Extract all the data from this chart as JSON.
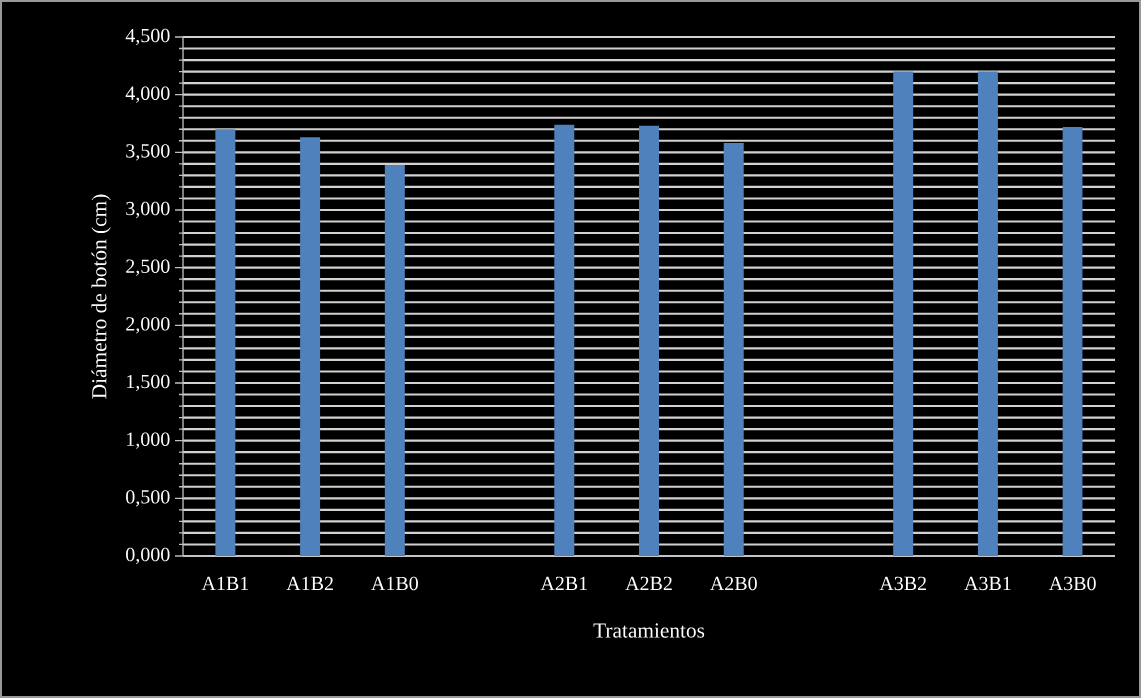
{
  "chart_data": {
    "type": "bar",
    "xlabel": "Tratamientos",
    "ylabel": "Diámetro de botón (cm)",
    "categories": [
      "A1B1",
      "A1B2",
      "A1B0",
      null,
      "A2B1",
      "A2B2",
      "A2B0",
      null,
      "A3B2",
      "A3B1",
      "A3B0"
    ],
    "values": [
      3.7,
      3.63,
      3.39,
      null,
      3.74,
      3.73,
      3.58,
      null,
      4.2,
      4.2,
      3.72
    ],
    "color": "#4f81bd",
    "ylim": [
      0,
      4.5
    ],
    "yticks": [
      {
        "value": 0,
        "label": "0,000"
      },
      {
        "value": 0.5,
        "label": "0,500"
      },
      {
        "value": 1,
        "label": "1,000"
      },
      {
        "value": 1.5,
        "label": "1,500"
      },
      {
        "value": 2,
        "label": "2,000"
      },
      {
        "value": 2.5,
        "label": "2,500"
      },
      {
        "value": 3,
        "label": "3,000"
      },
      {
        "value": 3.5,
        "label": "3,500"
      },
      {
        "value": 4,
        "label": "4,000"
      },
      {
        "value": 4.5,
        "label": "4,500"
      }
    ],
    "grid": "y"
  }
}
